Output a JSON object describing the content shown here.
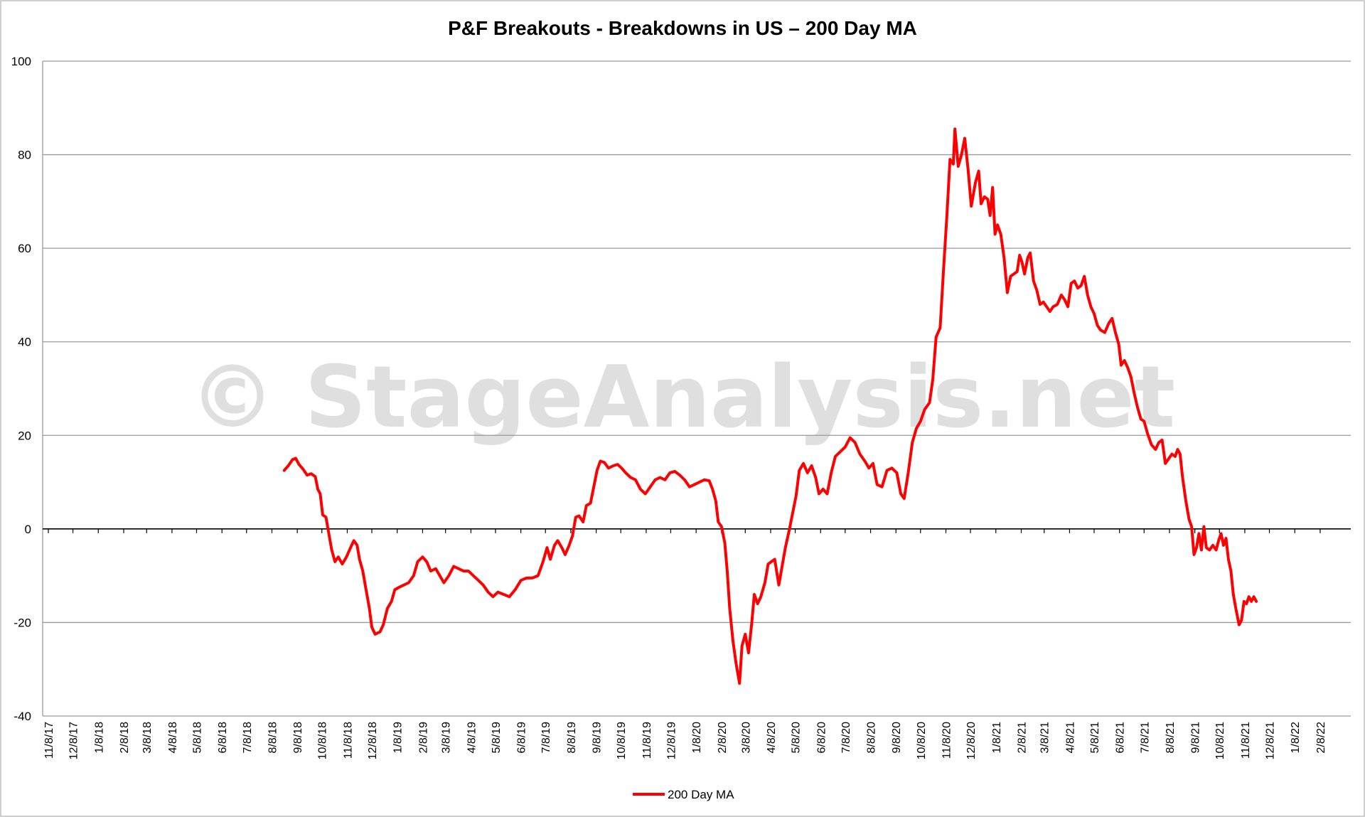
{
  "watermark_text": "© StageAnalysis.net",
  "chart_data": {
    "type": "line",
    "title": "P&F Breakouts - Breakdowns in US – 200 Day MA",
    "xlabel": "",
    "ylabel": "",
    "ylim": [
      -40,
      100
    ],
    "yticks": [
      -40,
      -20,
      0,
      20,
      40,
      60,
      80,
      100
    ],
    "x_tick_labels": [
      "11/8/17",
      "12/8/17",
      "1/8/18",
      "2/8/18",
      "3/8/18",
      "4/8/18",
      "5/8/18",
      "6/8/18",
      "7/8/18",
      "8/8/18",
      "9/8/18",
      "10/8/18",
      "11/8/18",
      "12/8/18",
      "1/8/19",
      "2/8/19",
      "3/8/19",
      "4/8/19",
      "5/8/19",
      "6/8/19",
      "7/8/19",
      "8/8/19",
      "9/8/19",
      "10/8/19",
      "11/8/19",
      "12/8/19",
      "1/8/20",
      "2/8/20",
      "3/8/20",
      "4/8/20",
      "5/8/20",
      "6/8/20",
      "7/8/20",
      "8/8/20",
      "9/8/20",
      "10/8/20",
      "11/8/20",
      "12/8/20",
      "1/8/21",
      "2/8/21",
      "3/8/21",
      "4/8/21",
      "5/8/21",
      "6/8/21",
      "7/8/21",
      "8/8/21",
      "9/8/21",
      "10/8/21",
      "11/8/21",
      "12/8/21",
      "1/8/22",
      "2/8/22"
    ],
    "grid": true,
    "legend_position": "bottom",
    "colors": {
      "series": "#ff0000",
      "grid": "#9a9a9a",
      "zero_line": "#000000"
    },
    "series": [
      {
        "name": "200 Day MA",
        "points": [
          [
            "2018-08-23",
            12.5
          ],
          [
            "2018-08-28",
            13.5
          ],
          [
            "2018-09-02",
            14.8
          ],
          [
            "2018-09-06",
            15.1
          ],
          [
            "2018-09-10",
            13.8
          ],
          [
            "2018-09-15",
            12.8
          ],
          [
            "2018-09-20",
            11.5
          ],
          [
            "2018-09-25",
            11.8
          ],
          [
            "2018-09-30",
            11.2
          ],
          [
            "2018-10-03",
            8.5
          ],
          [
            "2018-10-06",
            7.5
          ],
          [
            "2018-10-09",
            3.0
          ],
          [
            "2018-10-13",
            2.5
          ],
          [
            "2018-10-17",
            -1.5
          ],
          [
            "2018-10-20",
            -4.5
          ],
          [
            "2018-10-24",
            -7.0
          ],
          [
            "2018-10-28",
            -6.0
          ],
          [
            "2018-11-02",
            -7.5
          ],
          [
            "2018-11-07",
            -6.0
          ],
          [
            "2018-11-12",
            -4.0
          ],
          [
            "2018-11-16",
            -2.5
          ],
          [
            "2018-11-20",
            -3.5
          ],
          [
            "2018-11-23",
            -6.5
          ],
          [
            "2018-11-27",
            -9.0
          ],
          [
            "2018-12-01",
            -13.0
          ],
          [
            "2018-12-05",
            -17.0
          ],
          [
            "2018-12-08",
            -21.0
          ],
          [
            "2018-12-12",
            -22.5
          ],
          [
            "2018-12-18",
            -22.0
          ],
          [
            "2018-12-22",
            -20.5
          ],
          [
            "2018-12-27",
            -17.0
          ],
          [
            "2019-01-01",
            -15.5
          ],
          [
            "2019-01-05",
            -13.0
          ],
          [
            "2019-01-10",
            -12.5
          ],
          [
            "2019-01-16",
            -12.0
          ],
          [
            "2019-01-22",
            -11.5
          ],
          [
            "2019-01-28",
            -10.0
          ],
          [
            "2019-02-02",
            -7.0
          ],
          [
            "2019-02-08",
            -6.0
          ],
          [
            "2019-02-13",
            -7.0
          ],
          [
            "2019-02-18",
            -9.0
          ],
          [
            "2019-02-24",
            -8.5
          ],
          [
            "2019-03-01",
            -10.0
          ],
          [
            "2019-03-06",
            -11.5
          ],
          [
            "2019-03-12",
            -10.0
          ],
          [
            "2019-03-18",
            -8.0
          ],
          [
            "2019-03-24",
            -8.5
          ],
          [
            "2019-03-30",
            -9.0
          ],
          [
            "2019-04-05",
            -9.0
          ],
          [
            "2019-04-11",
            -10.0
          ],
          [
            "2019-04-17",
            -11.0
          ],
          [
            "2019-04-23",
            -12.0
          ],
          [
            "2019-04-29",
            -13.5
          ],
          [
            "2019-05-05",
            -14.5
          ],
          [
            "2019-05-11",
            -13.5
          ],
          [
            "2019-05-18",
            -14.0
          ],
          [
            "2019-05-25",
            -14.5
          ],
          [
            "2019-06-01",
            -13.0
          ],
          [
            "2019-06-08",
            -11.0
          ],
          [
            "2019-06-15",
            -10.5
          ],
          [
            "2019-06-22",
            -10.5
          ],
          [
            "2019-06-29",
            -10.0
          ],
          [
            "2019-07-05",
            -7.0
          ],
          [
            "2019-07-10",
            -4.0
          ],
          [
            "2019-07-14",
            -6.5
          ],
          [
            "2019-07-19",
            -3.5
          ],
          [
            "2019-07-23",
            -2.5
          ],
          [
            "2019-07-28",
            -4.0
          ],
          [
            "2019-08-01",
            -5.5
          ],
          [
            "2019-08-06",
            -3.5
          ],
          [
            "2019-08-10",
            -1.5
          ],
          [
            "2019-08-14",
            2.5
          ],
          [
            "2019-08-18",
            2.8
          ],
          [
            "2019-08-23",
            1.5
          ],
          [
            "2019-08-27",
            5.0
          ],
          [
            "2019-09-01",
            5.5
          ],
          [
            "2019-09-05",
            9.0
          ],
          [
            "2019-09-09",
            12.5
          ],
          [
            "2019-09-13",
            14.5
          ],
          [
            "2019-09-18",
            14.2
          ],
          [
            "2019-09-23",
            13.0
          ],
          [
            "2019-09-29",
            13.5
          ],
          [
            "2019-10-04",
            13.8
          ],
          [
            "2019-10-09",
            13.0
          ],
          [
            "2019-10-14",
            12.0
          ],
          [
            "2019-10-20",
            11.0
          ],
          [
            "2019-10-26",
            10.5
          ],
          [
            "2019-11-01",
            8.5
          ],
          [
            "2019-11-07",
            7.5
          ],
          [
            "2019-11-13",
            9.0
          ],
          [
            "2019-11-19",
            10.5
          ],
          [
            "2019-11-25",
            11.0
          ],
          [
            "2019-12-01",
            10.5
          ],
          [
            "2019-12-07",
            12.0
          ],
          [
            "2019-12-13",
            12.3
          ],
          [
            "2019-12-19",
            11.5
          ],
          [
            "2019-12-25",
            10.5
          ],
          [
            "2019-12-31",
            9.0
          ],
          [
            "2020-01-06",
            9.5
          ],
          [
            "2020-01-12",
            10.0
          ],
          [
            "2020-01-18",
            10.5
          ],
          [
            "2020-01-24",
            10.3
          ],
          [
            "2020-01-28",
            8.5
          ],
          [
            "2020-02-01",
            6.0
          ],
          [
            "2020-02-04",
            1.5
          ],
          [
            "2020-02-08",
            0.5
          ],
          [
            "2020-02-12",
            -3.0
          ],
          [
            "2020-02-15",
            -9.0
          ],
          [
            "2020-02-18",
            -17.0
          ],
          [
            "2020-02-22",
            -24.0
          ],
          [
            "2020-02-26",
            -29.0
          ],
          [
            "2020-03-01",
            -33.0
          ],
          [
            "2020-03-04",
            -25.0
          ],
          [
            "2020-03-08",
            -22.5
          ],
          [
            "2020-03-12",
            -26.5
          ],
          [
            "2020-03-16",
            -20.0
          ],
          [
            "2020-03-19",
            -14.0
          ],
          [
            "2020-03-23",
            -16.0
          ],
          [
            "2020-03-27",
            -14.5
          ],
          [
            "2020-04-01",
            -11.5
          ],
          [
            "2020-04-05",
            -7.5
          ],
          [
            "2020-04-09",
            -7.0
          ],
          [
            "2020-04-13",
            -6.5
          ],
          [
            "2020-04-18",
            -12.0
          ],
          [
            "2020-04-22",
            -8.0
          ],
          [
            "2020-04-26",
            -4.0
          ],
          [
            "2020-05-01",
            0.0
          ],
          [
            "2020-05-05",
            3.5
          ],
          [
            "2020-05-09",
            7.0
          ],
          [
            "2020-05-13",
            12.5
          ],
          [
            "2020-05-18",
            14.0
          ],
          [
            "2020-05-23",
            12.0
          ],
          [
            "2020-05-28",
            13.5
          ],
          [
            "2020-06-02",
            11.0
          ],
          [
            "2020-06-06",
            7.5
          ],
          [
            "2020-06-11",
            8.5
          ],
          [
            "2020-06-16",
            7.5
          ],
          [
            "2020-06-21",
            12.0
          ],
          [
            "2020-06-26",
            15.5
          ],
          [
            "2020-07-02",
            16.5
          ],
          [
            "2020-07-08",
            17.5
          ],
          [
            "2020-07-14",
            19.5
          ],
          [
            "2020-07-20",
            18.5
          ],
          [
            "2020-07-26",
            16.0
          ],
          [
            "2020-08-01",
            14.5
          ],
          [
            "2020-08-06",
            13.0
          ],
          [
            "2020-08-11",
            14.0
          ],
          [
            "2020-08-16",
            9.5
          ],
          [
            "2020-08-22",
            9.0
          ],
          [
            "2020-08-28",
            12.5
          ],
          [
            "2020-09-03",
            13.0
          ],
          [
            "2020-09-09",
            12.0
          ],
          [
            "2020-09-14",
            7.5
          ],
          [
            "2020-09-18",
            6.5
          ],
          [
            "2020-09-23",
            12.0
          ],
          [
            "2020-09-28",
            18.5
          ],
          [
            "2020-10-03",
            21.5
          ],
          [
            "2020-10-08",
            23.0
          ],
          [
            "2020-10-13",
            25.5
          ],
          [
            "2020-10-19",
            27.0
          ],
          [
            "2020-10-23",
            32.0
          ],
          [
            "2020-10-27",
            41.0
          ],
          [
            "2020-11-01",
            43.0
          ],
          [
            "2020-11-05",
            55.0
          ],
          [
            "2020-11-09",
            66.5
          ],
          [
            "2020-11-13",
            79.0
          ],
          [
            "2020-11-17",
            78.0
          ],
          [
            "2020-11-19",
            85.5
          ],
          [
            "2020-11-23",
            77.5
          ],
          [
            "2020-11-27",
            80.0
          ],
          [
            "2020-12-01",
            83.5
          ],
          [
            "2020-12-05",
            77.0
          ],
          [
            "2020-12-09",
            69.0
          ],
          [
            "2020-12-14",
            74.0
          ],
          [
            "2020-12-18",
            76.5
          ],
          [
            "2020-12-21",
            69.5
          ],
          [
            "2020-12-25",
            71.0
          ],
          [
            "2020-12-29",
            70.5
          ],
          [
            "2021-01-01",
            67.0
          ],
          [
            "2021-01-04",
            73.0
          ],
          [
            "2021-01-07",
            63.0
          ],
          [
            "2021-01-10",
            65.0
          ],
          [
            "2021-01-14",
            63.0
          ],
          [
            "2021-01-18",
            58.0
          ],
          [
            "2021-01-22",
            50.5
          ],
          [
            "2021-01-26",
            54.0
          ],
          [
            "2021-01-30",
            54.5
          ],
          [
            "2021-02-03",
            55.0
          ],
          [
            "2021-02-06",
            58.5
          ],
          [
            "2021-02-09",
            57.0
          ],
          [
            "2021-02-12",
            54.5
          ],
          [
            "2021-02-16",
            58.0
          ],
          [
            "2021-02-19",
            59.0
          ],
          [
            "2021-02-23",
            53.0
          ],
          [
            "2021-02-27",
            51.0
          ],
          [
            "2021-03-03",
            48.0
          ],
          [
            "2021-03-07",
            48.5
          ],
          [
            "2021-03-11",
            47.5
          ],
          [
            "2021-03-15",
            46.5
          ],
          [
            "2021-03-19",
            47.5
          ],
          [
            "2021-03-24",
            48.0
          ],
          [
            "2021-03-29",
            50.0
          ],
          [
            "2021-04-02",
            49.0
          ],
          [
            "2021-04-06",
            47.5
          ],
          [
            "2021-04-10",
            52.5
          ],
          [
            "2021-04-14",
            53.0
          ],
          [
            "2021-04-18",
            51.5
          ],
          [
            "2021-04-22",
            52.0
          ],
          [
            "2021-04-26",
            54.0
          ],
          [
            "2021-04-30",
            50.0
          ],
          [
            "2021-05-04",
            47.5
          ],
          [
            "2021-05-08",
            46.0
          ],
          [
            "2021-05-12",
            43.5
          ],
          [
            "2021-05-16",
            42.5
          ],
          [
            "2021-05-21",
            42.0
          ],
          [
            "2021-05-26",
            44.0
          ],
          [
            "2021-05-30",
            45.0
          ],
          [
            "2021-06-03",
            42.0
          ],
          [
            "2021-06-07",
            39.5
          ],
          [
            "2021-06-10",
            35.0
          ],
          [
            "2021-06-14",
            36.0
          ],
          [
            "2021-06-18",
            34.5
          ],
          [
            "2021-06-22",
            32.5
          ],
          [
            "2021-06-26",
            29.0
          ],
          [
            "2021-06-30",
            26.0
          ],
          [
            "2021-07-04",
            23.5
          ],
          [
            "2021-07-08",
            23.0
          ],
          [
            "2021-07-12",
            20.5
          ],
          [
            "2021-07-17",
            18.0
          ],
          [
            "2021-07-22",
            17.0
          ],
          [
            "2021-07-26",
            18.5
          ],
          [
            "2021-07-30",
            19.0
          ],
          [
            "2021-08-03",
            14.0
          ],
          [
            "2021-08-07",
            15.0
          ],
          [
            "2021-08-11",
            16.0
          ],
          [
            "2021-08-15",
            15.5
          ],
          [
            "2021-08-18",
            17.0
          ],
          [
            "2021-08-21",
            16.0
          ],
          [
            "2021-08-24",
            11.0
          ],
          [
            "2021-08-28",
            6.0
          ],
          [
            "2021-09-01",
            2.0
          ],
          [
            "2021-09-04",
            0.5
          ],
          [
            "2021-09-07",
            -5.5
          ],
          [
            "2021-09-10",
            -4.0
          ],
          [
            "2021-09-13",
            -1.0
          ],
          [
            "2021-09-16",
            -4.5
          ],
          [
            "2021-09-19",
            0.5
          ],
          [
            "2021-09-22",
            -4.0
          ],
          [
            "2021-09-26",
            -4.5
          ],
          [
            "2021-09-30",
            -3.5
          ],
          [
            "2021-10-04",
            -4.5
          ],
          [
            "2021-10-07",
            -2.5
          ],
          [
            "2021-10-10",
            -1.0
          ],
          [
            "2021-10-13",
            -3.5
          ],
          [
            "2021-10-16",
            -2.0
          ],
          [
            "2021-10-19",
            -6.5
          ],
          [
            "2021-10-22",
            -9.0
          ],
          [
            "2021-10-25",
            -14.0
          ],
          [
            "2021-10-28",
            -17.0
          ],
          [
            "2021-11-01",
            -20.5
          ],
          [
            "2021-11-04",
            -19.5
          ],
          [
            "2021-11-07",
            -15.5
          ],
          [
            "2021-11-10",
            -16.0
          ],
          [
            "2021-11-13",
            -14.5
          ],
          [
            "2021-11-16",
            -15.5
          ],
          [
            "2021-11-19",
            -14.5
          ],
          [
            "2021-11-22",
            -15.5
          ]
        ]
      }
    ]
  }
}
